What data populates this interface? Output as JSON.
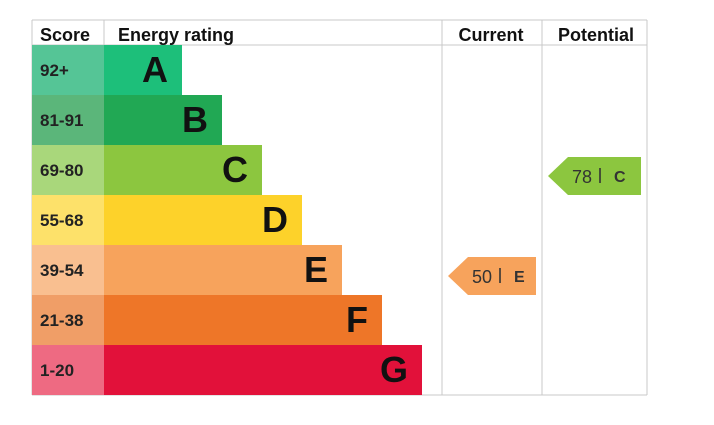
{
  "chart_data": {
    "type": "table",
    "headers": {
      "score": "Score",
      "rating": "Energy rating",
      "current": "Current",
      "potential": "Potential"
    },
    "bands": [
      {
        "score": "92+",
        "letter": "A",
        "color": "#1dbf7a",
        "score_color": "#55c596"
      },
      {
        "score": "81-91",
        "letter": "B",
        "color": "#21a854",
        "score_color": "#5bb67a"
      },
      {
        "score": "69-80",
        "letter": "C",
        "color": "#8cc63f",
        "score_color": "#a9d77b"
      },
      {
        "score": "55-68",
        "letter": "D",
        "color": "#fdd22a",
        "score_color": "#fde16a"
      },
      {
        "score": "39-54",
        "letter": "E",
        "color": "#f7a35c",
        "score_color": "#f9bf90"
      },
      {
        "score": "21-38",
        "letter": "F",
        "color": "#ee7628",
        "score_color": "#f09e67"
      },
      {
        "score": "1-20",
        "letter": "G",
        "color": "#e2113a",
        "score_color": "#ee6a82"
      }
    ],
    "current": {
      "value": 50,
      "letter": "E",
      "color": "#f7a35c"
    },
    "potential": {
      "value": 78,
      "letter": "C",
      "color": "#8cc63f"
    },
    "grid_color": "#c8c8c8"
  }
}
